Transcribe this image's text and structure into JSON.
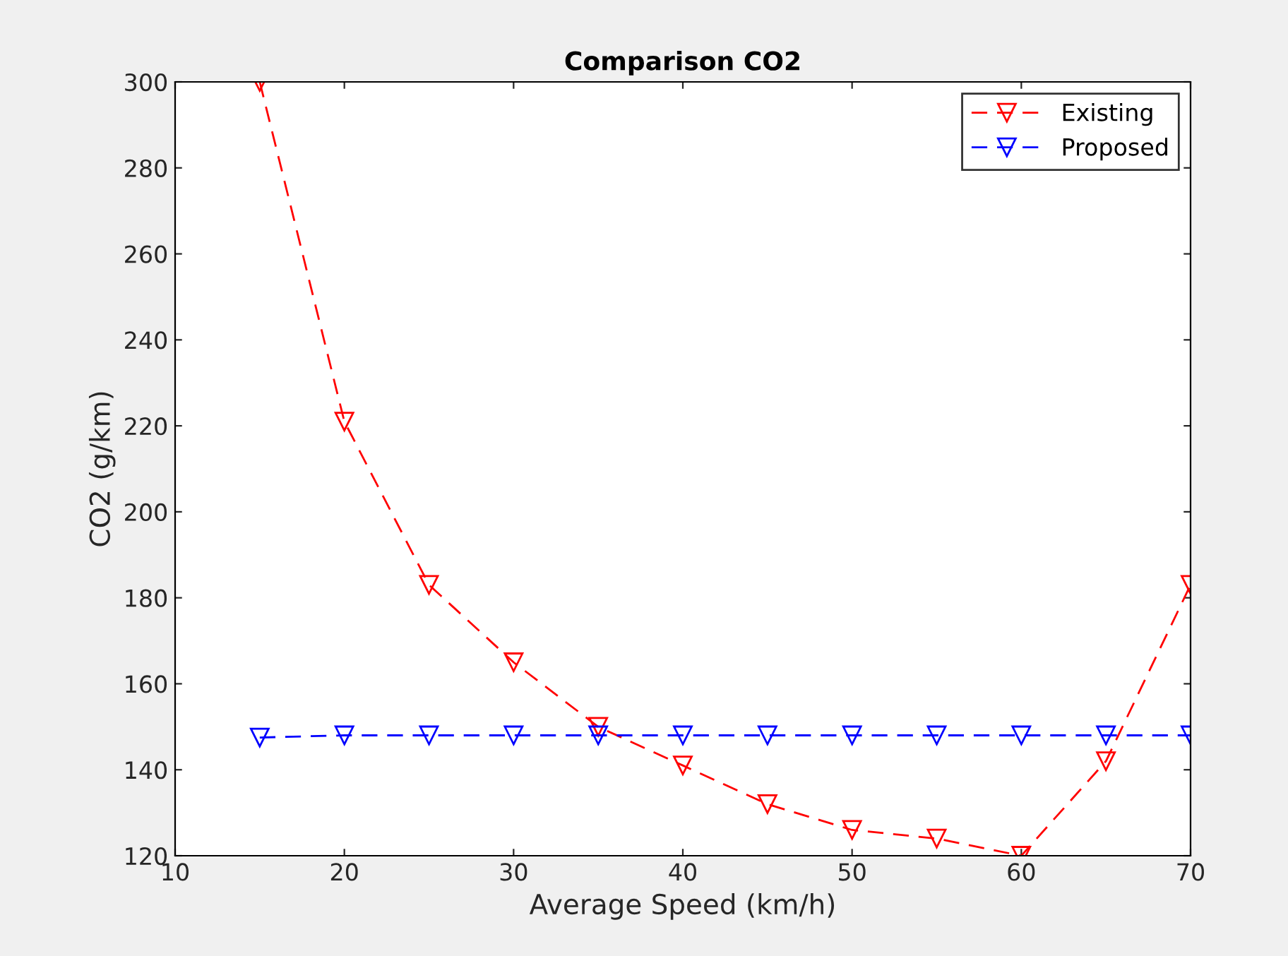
{
  "chart_data": {
    "type": "line",
    "title": "Comparison CO2",
    "xlabel": "Average Speed (km/h)",
    "ylabel": "CO2 (g/km)",
    "x": [
      15,
      20,
      25,
      30,
      35,
      40,
      45,
      50,
      55,
      60,
      65,
      70
    ],
    "series": [
      {
        "name": "Existing",
        "color": "#ff0000",
        "values": [
          300,
          221,
          183,
          165,
          150,
          141,
          132,
          126,
          124,
          120,
          142,
          183
        ]
      },
      {
        "name": "Proposed",
        "color": "#0000ff",
        "values": [
          147.5,
          148,
          148,
          148,
          148,
          148,
          148,
          148,
          148,
          148,
          148,
          148
        ]
      }
    ],
    "xlim": [
      10,
      70
    ],
    "xticks": [
      10,
      20,
      30,
      40,
      50,
      60,
      70
    ],
    "ylim": [
      120,
      300
    ],
    "yticks": [
      120,
      140,
      160,
      180,
      200,
      220,
      240,
      260,
      280,
      300
    ],
    "grid": false,
    "legend": "top right",
    "marker": "triangle",
    "line_style": "dashed"
  }
}
